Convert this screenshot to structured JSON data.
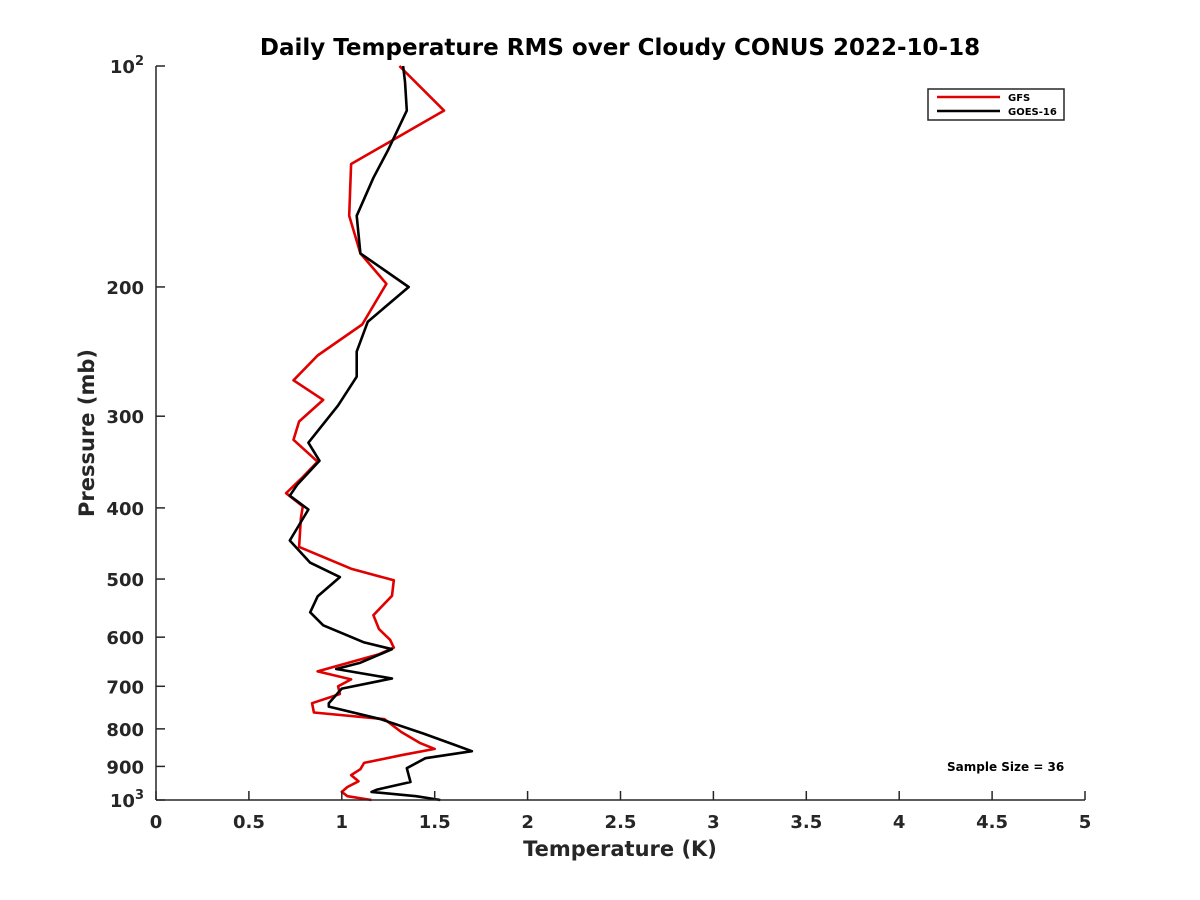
{
  "chart_data": {
    "type": "line",
    "title": "Daily Temperature RMS over Cloudy CONUS 2022-10-18",
    "xlabel": "Temperature (K)",
    "ylabel": "Pressure (mb)",
    "xlim": [
      0,
      5
    ],
    "ylim": [
      1000,
      100
    ],
    "yscale": "log",
    "y_reversed": true,
    "grid": false,
    "legend_position": "top-right",
    "x_ticks": [
      0,
      0.5,
      1,
      1.5,
      2,
      2.5,
      3,
      3.5,
      4,
      4.5,
      5
    ],
    "x_tick_labels": [
      "0",
      "0.5",
      "1",
      "1.5",
      "2",
      "2.5",
      "3",
      "3.5",
      "4",
      "4.5",
      "5"
    ],
    "y_ticks": [
      100,
      200,
      300,
      400,
      500,
      600,
      700,
      800,
      900,
      1000
    ],
    "y_tick_labels": [
      {
        "base": "10",
        "exp": "2"
      },
      {
        "base": "200",
        "exp": ""
      },
      {
        "base": "300",
        "exp": ""
      },
      {
        "base": "400",
        "exp": ""
      },
      {
        "base": "500",
        "exp": ""
      },
      {
        "base": "600",
        "exp": ""
      },
      {
        "base": "700",
        "exp": ""
      },
      {
        "base": "800",
        "exp": ""
      },
      {
        "base": "900",
        "exp": ""
      },
      {
        "base": "10",
        "exp": "3"
      }
    ],
    "annotation": "Sample Size = 36",
    "series": [
      {
        "name": "GFS",
        "color": "#e00000",
        "points": [
          [
            1.31,
            100
          ],
          [
            1.55,
            115
          ],
          [
            1.05,
            136
          ],
          [
            1.04,
            160
          ],
          [
            1.1,
            180
          ],
          [
            1.24,
            198
          ],
          [
            1.11,
            225
          ],
          [
            0.87,
            248
          ],
          [
            0.74,
            268
          ],
          [
            0.9,
            285
          ],
          [
            0.77,
            305
          ],
          [
            0.74,
            323
          ],
          [
            0.87,
            346
          ],
          [
            0.79,
            363
          ],
          [
            0.7,
            382
          ],
          [
            0.79,
            398
          ],
          [
            0.78,
            413
          ],
          [
            0.77,
            452
          ],
          [
            1.05,
            484
          ],
          [
            1.28,
            502
          ],
          [
            1.27,
            527
          ],
          [
            1.17,
            560
          ],
          [
            1.2,
            585
          ],
          [
            1.26,
            605
          ],
          [
            1.28,
            620
          ],
          [
            1.2,
            633
          ],
          [
            0.87,
            668
          ],
          [
            1.05,
            685
          ],
          [
            0.98,
            700
          ],
          [
            0.99,
            717
          ],
          [
            0.84,
            738
          ],
          [
            0.85,
            760
          ],
          [
            1.23,
            776
          ],
          [
            1.32,
            808
          ],
          [
            1.42,
            836
          ],
          [
            1.5,
            852
          ],
          [
            1.32,
            869
          ],
          [
            1.12,
            890
          ],
          [
            1.1,
            908
          ],
          [
            1.05,
            925
          ],
          [
            1.09,
            943
          ],
          [
            1.03,
            960
          ],
          [
            1.0,
            975
          ],
          [
            1.03,
            988
          ],
          [
            1.16,
            1000
          ]
        ]
      },
      {
        "name": "GOES-16",
        "color": "#000000",
        "points": [
          [
            1.33,
            100
          ],
          [
            1.34,
            105
          ],
          [
            1.35,
            115
          ],
          [
            1.25,
            130
          ],
          [
            1.17,
            142
          ],
          [
            1.08,
            160
          ],
          [
            1.1,
            180
          ],
          [
            1.36,
            200
          ],
          [
            1.14,
            223
          ],
          [
            1.08,
            245
          ],
          [
            1.08,
            265
          ],
          [
            0.98,
            290
          ],
          [
            0.82,
            326
          ],
          [
            0.88,
            345
          ],
          [
            0.76,
            372
          ],
          [
            0.72,
            385
          ],
          [
            0.82,
            402
          ],
          [
            0.72,
            443
          ],
          [
            0.83,
            475
          ],
          [
            0.99,
            497
          ],
          [
            0.87,
            528
          ],
          [
            0.83,
            555
          ],
          [
            0.9,
            578
          ],
          [
            1.12,
            610
          ],
          [
            1.27,
            623
          ],
          [
            1.1,
            650
          ],
          [
            0.97,
            663
          ],
          [
            1.27,
            683
          ],
          [
            1.0,
            705
          ],
          [
            0.93,
            738
          ],
          [
            0.93,
            746
          ],
          [
            1.21,
            776
          ],
          [
            1.44,
            812
          ],
          [
            1.6,
            840
          ],
          [
            1.7,
            858
          ],
          [
            1.45,
            877
          ],
          [
            1.35,
            905
          ],
          [
            1.37,
            945
          ],
          [
            1.19,
            968
          ],
          [
            1.16,
            975
          ],
          [
            1.4,
            988
          ],
          [
            1.53,
            1000
          ]
        ]
      }
    ]
  }
}
